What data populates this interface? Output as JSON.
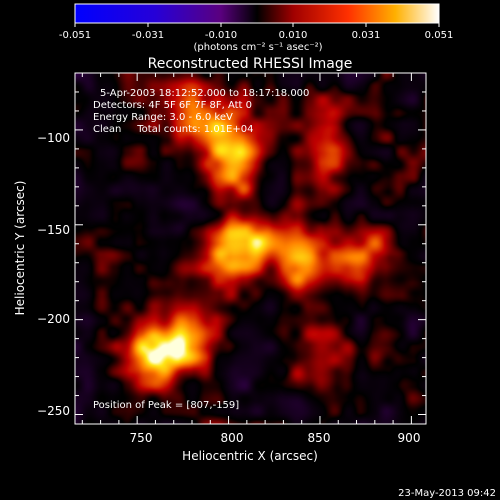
{
  "colorbar": {
    "ticks": [
      "-0.051",
      "-0.031",
      "-0.010",
      "0.010",
      "0.031",
      "0.051"
    ],
    "units_line": "(photons cm⁻² s⁻¹ asec⁻²)"
  },
  "title": "Reconstructed RHESSI Image",
  "info": {
    "time_range": "5-Apr-2003 18:12:52.000 to 18:17:18.000",
    "detectors": "Detectors: 4F 5F 6F 7F 8F, Att 0",
    "energy": "Energy Range: 3.0 - 6.0 keV",
    "clean": "Clean     Total counts: 1.01E+04"
  },
  "peak_text": "Position of Peak = [807,-159]",
  "timestamp": "23-May-2013 09:42",
  "chart_data": {
    "type": "heatmap",
    "title": "Reconstructed RHESSI Image",
    "xlabel": "Heliocentric X (arcsec)",
    "ylabel": "Heliocentric Y (arcsec)",
    "xlim": [
      716,
      908
    ],
    "ylim": [
      -255,
      -70
    ],
    "x_ticks": [
      750,
      800,
      850,
      900
    ],
    "y_ticks": [
      -100,
      -150,
      -200,
      -250
    ],
    "x_tick_labels": [
      "750",
      "800",
      "850",
      "900"
    ],
    "y_tick_labels": [
      "−100",
      "−150",
      "−200",
      "−250"
    ],
    "colorbar_range": [
      -0.051,
      0.051
    ],
    "peak": [
      807,
      -159
    ],
    "sources": [
      {
        "x": 807,
        "y": -159,
        "amplitude": 1.0
      },
      {
        "x": 800,
        "y": -113,
        "amplitude": 0.85
      },
      {
        "x": 758,
        "y": -217,
        "amplitude": 0.78
      },
      {
        "x": 780,
        "y": -208,
        "amplitude": 0.6
      },
      {
        "x": 782,
        "y": -92,
        "amplitude": 0.5
      },
      {
        "x": 840,
        "y": -170,
        "amplitude": 0.58
      },
      {
        "x": 850,
        "y": -218,
        "amplitude": 0.5
      },
      {
        "x": 872,
        "y": -165,
        "amplitude": 0.55
      },
      {
        "x": 855,
        "y": -110,
        "amplitude": 0.45
      }
    ]
  }
}
